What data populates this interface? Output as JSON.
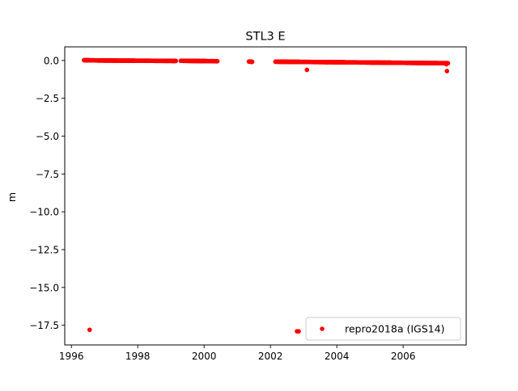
{
  "chart_data": {
    "type": "scatter",
    "title": "STL3 E",
    "xlabel": "",
    "ylabel": "m",
    "xlim": [
      1995.8,
      2007.9
    ],
    "ylim": [
      -18.8,
      0.9
    ],
    "x_ticks": [
      1996,
      1998,
      2000,
      2002,
      2004,
      2006
    ],
    "x_tick_labels": [
      "1996",
      "1998",
      "2000",
      "2002",
      "2004",
      "2006"
    ],
    "y_ticks": [
      0.0,
      -2.5,
      -5.0,
      -7.5,
      -10.0,
      -12.5,
      -15.0,
      -17.5
    ],
    "y_tick_labels": [
      "0.0",
      "−2.5",
      "−5.0",
      "−7.5",
      "−10.0",
      "−12.5",
      "−15.0",
      "−17.5"
    ],
    "grid": false,
    "legend_position": "lower-right",
    "series": [
      {
        "name": "repro2018a (IGS14)",
        "color": "#ff0000",
        "marker": "circle",
        "segments": [
          {
            "x_start": 1996.38,
            "x_end": 1996.85,
            "y_start": 0.02,
            "y_end": 0.0
          },
          {
            "x_start": 1996.85,
            "x_end": 1999.15,
            "y_start": 0.0,
            "y_end": -0.03
          },
          {
            "x_start": 1999.3,
            "x_end": 2000.4,
            "y_start": -0.02,
            "y_end": -0.05
          },
          {
            "x_start": 2001.35,
            "x_end": 2001.45,
            "y_start": -0.07,
            "y_end": -0.09
          },
          {
            "x_start": 2002.15,
            "x_end": 2007.35,
            "y_start": -0.08,
            "y_end": -0.18
          }
        ],
        "points": [
          {
            "x": 1996.55,
            "y": -17.8
          },
          {
            "x": 2002.8,
            "y": -17.9
          },
          {
            "x": 2002.85,
            "y": -17.9
          },
          {
            "x": 2003.1,
            "y": -0.62
          },
          {
            "x": 2007.32,
            "y": -0.7
          },
          {
            "x": 2003.7,
            "y": -0.12
          },
          {
            "x": 2007.3,
            "y": -0.25
          }
        ]
      }
    ]
  }
}
